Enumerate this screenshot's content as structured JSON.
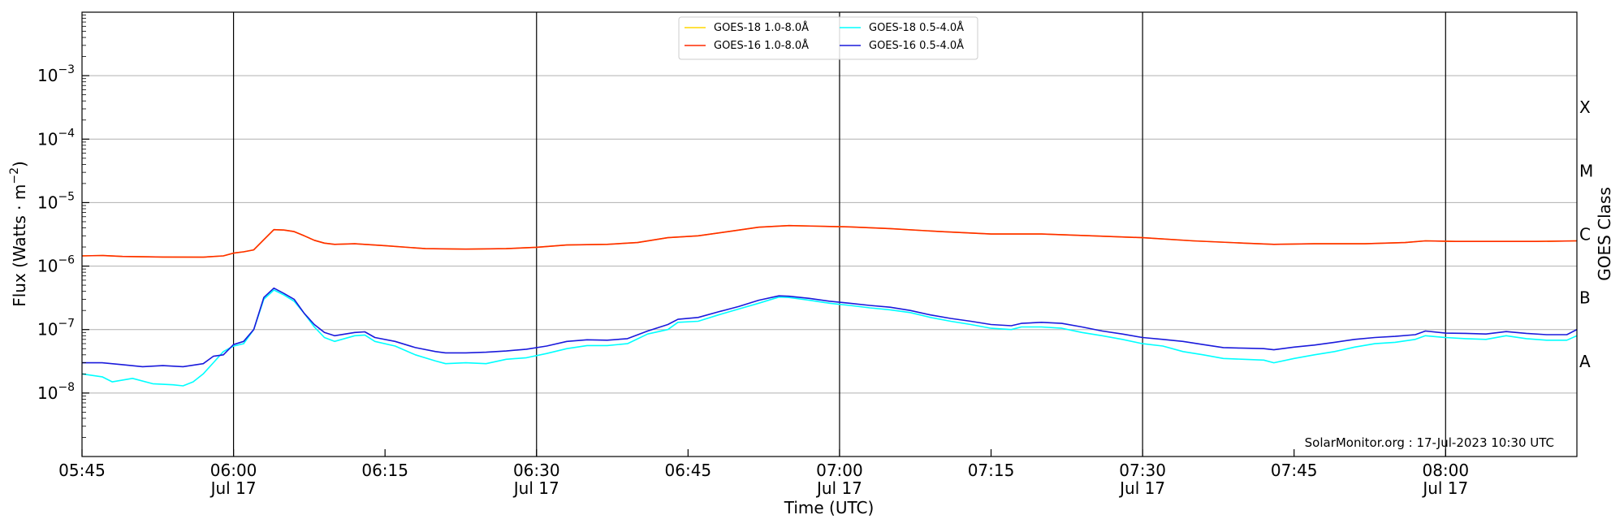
{
  "chart_data": {
    "type": "line",
    "title": "",
    "xlabel": "Time (UTC)",
    "ylabel_parts": {
      "main": "Flux (Watts · m",
      "exp": "−2",
      "close": ")"
    },
    "right_axis_label": "GOES Class",
    "credit": "SolarMonitor.org : 17-Jul-2023 10:30 UTC",
    "y_scale": "log",
    "ylim": [
      1e-09,
      0.01
    ],
    "x_range_minutes": [
      0,
      148
    ],
    "grid": "horizontal at decades, vertical at half-hour",
    "legend_position": "top-center",
    "x_ticks": [
      {
        "t": 0,
        "label": "05:45",
        "date": ""
      },
      {
        "t": 15,
        "label": "06:00",
        "date": "Jul 17"
      },
      {
        "t": 30,
        "label": "06:15",
        "date": ""
      },
      {
        "t": 45,
        "label": "06:30",
        "date": "Jul 17"
      },
      {
        "t": 60,
        "label": "06:45",
        "date": ""
      },
      {
        "t": 75,
        "label": "07:00",
        "date": "Jul 17"
      },
      {
        "t": 90,
        "label": "07:15",
        "date": ""
      },
      {
        "t": 105,
        "label": "07:30",
        "date": "Jul 17"
      },
      {
        "t": 120,
        "label": "07:45",
        "date": ""
      },
      {
        "t": 135,
        "label": "08:00",
        "date": "Jul 17"
      }
    ],
    "y_ticks": [
      {
        "exp": -8,
        "base": "10",
        "sup": "−8"
      },
      {
        "exp": -7,
        "base": "10",
        "sup": "−7"
      },
      {
        "exp": -6,
        "base": "10",
        "sup": "−6"
      },
      {
        "exp": -5,
        "base": "10",
        "sup": "−5"
      },
      {
        "exp": -4,
        "base": "10",
        "sup": "−4"
      },
      {
        "exp": -3,
        "base": "10",
        "sup": "−3"
      }
    ],
    "classes": [
      {
        "label": "A",
        "exp": -7.5
      },
      {
        "label": "B",
        "exp": -6.5
      },
      {
        "label": "C",
        "exp": -5.5
      },
      {
        "label": "M",
        "exp": -4.5
      },
      {
        "label": "X",
        "exp": -3.5
      }
    ],
    "legend": [
      {
        "name": "GOES-18 1.0-8.0Å",
        "color": "#ffd700"
      },
      {
        "name": "GOES-18 0.5-4.0Å",
        "color": "#00ffff"
      },
      {
        "name": "GOES-16 1.0-8.0Å",
        "color": "#ff2a00"
      },
      {
        "name": "GOES-16 0.5-4.0Å",
        "color": "#1a1adc"
      }
    ],
    "time_unit": "minutes after 05:45 UTC",
    "series": [
      {
        "name": "GOES-18 1.0-8.0Å",
        "color": "#ffd700",
        "points": [
          [
            0,
            1.45e-06
          ],
          [
            2,
            1.47e-06
          ],
          [
            4,
            1.42e-06
          ],
          [
            8,
            1.39e-06
          ],
          [
            12,
            1.38e-06
          ],
          [
            14,
            1.45e-06
          ],
          [
            15,
            1.6e-06
          ],
          [
            16,
            1.68e-06
          ],
          [
            17,
            1.8e-06
          ],
          [
            18,
            2.6e-06
          ],
          [
            19,
            3.75e-06
          ],
          [
            20,
            3.7e-06
          ],
          [
            21,
            3.5e-06
          ],
          [
            22,
            3e-06
          ],
          [
            23,
            2.55e-06
          ],
          [
            24,
            2.3e-06
          ],
          [
            25,
            2.2e-06
          ],
          [
            27,
            2.25e-06
          ],
          [
            30,
            2.1e-06
          ],
          [
            34,
            1.88e-06
          ],
          [
            38,
            1.85e-06
          ],
          [
            42,
            1.88e-06
          ],
          [
            45,
            1.98e-06
          ],
          [
            48,
            2.15e-06
          ],
          [
            52,
            2.2e-06
          ],
          [
            55,
            2.35e-06
          ],
          [
            58,
            2.8e-06
          ],
          [
            61,
            3e-06
          ],
          [
            64,
            3.5e-06
          ],
          [
            67,
            4.1e-06
          ],
          [
            70,
            4.35e-06
          ],
          [
            73,
            4.25e-06
          ],
          [
            76,
            4.15e-06
          ],
          [
            80,
            3.9e-06
          ],
          [
            85,
            3.5e-06
          ],
          [
            90,
            3.2e-06
          ],
          [
            95,
            3.2e-06
          ],
          [
            100,
            3e-06
          ],
          [
            105,
            2.8e-06
          ],
          [
            110,
            2.5e-06
          ],
          [
            115,
            2.3e-06
          ],
          [
            118,
            2.2e-06
          ],
          [
            122,
            2.25e-06
          ],
          [
            127,
            2.25e-06
          ],
          [
            131,
            2.35e-06
          ],
          [
            133,
            2.5e-06
          ],
          [
            136,
            2.45e-06
          ],
          [
            140,
            2.45e-06
          ],
          [
            144,
            2.45e-06
          ],
          [
            148,
            2.5e-06
          ]
        ]
      },
      {
        "name": "GOES-16 1.0-8.0Å",
        "color": "#ff2a00",
        "points": [
          [
            0,
            1.45e-06
          ],
          [
            2,
            1.47e-06
          ],
          [
            4,
            1.42e-06
          ],
          [
            8,
            1.39e-06
          ],
          [
            12,
            1.38e-06
          ],
          [
            14,
            1.45e-06
          ],
          [
            15,
            1.6e-06
          ],
          [
            16,
            1.68e-06
          ],
          [
            17,
            1.8e-06
          ],
          [
            18,
            2.6e-06
          ],
          [
            19,
            3.75e-06
          ],
          [
            20,
            3.7e-06
          ],
          [
            21,
            3.5e-06
          ],
          [
            22,
            3e-06
          ],
          [
            23,
            2.55e-06
          ],
          [
            24,
            2.3e-06
          ],
          [
            25,
            2.2e-06
          ],
          [
            27,
            2.25e-06
          ],
          [
            30,
            2.1e-06
          ],
          [
            34,
            1.88e-06
          ],
          [
            38,
            1.85e-06
          ],
          [
            42,
            1.88e-06
          ],
          [
            45,
            1.98e-06
          ],
          [
            48,
            2.15e-06
          ],
          [
            52,
            2.2e-06
          ],
          [
            55,
            2.35e-06
          ],
          [
            58,
            2.8e-06
          ],
          [
            61,
            3e-06
          ],
          [
            64,
            3.5e-06
          ],
          [
            67,
            4.1e-06
          ],
          [
            70,
            4.35e-06
          ],
          [
            73,
            4.25e-06
          ],
          [
            76,
            4.15e-06
          ],
          [
            80,
            3.9e-06
          ],
          [
            85,
            3.5e-06
          ],
          [
            90,
            3.2e-06
          ],
          [
            95,
            3.2e-06
          ],
          [
            100,
            3e-06
          ],
          [
            105,
            2.8e-06
          ],
          [
            110,
            2.5e-06
          ],
          [
            115,
            2.3e-06
          ],
          [
            118,
            2.2e-06
          ],
          [
            122,
            2.25e-06
          ],
          [
            127,
            2.25e-06
          ],
          [
            131,
            2.35e-06
          ],
          [
            133,
            2.5e-06
          ],
          [
            136,
            2.45e-06
          ],
          [
            140,
            2.45e-06
          ],
          [
            144,
            2.45e-06
          ],
          [
            148,
            2.5e-06
          ]
        ]
      },
      {
        "name": "GOES-18 0.5-4.0Å",
        "color": "#00ffff",
        "points": [
          [
            0,
            2e-08
          ],
          [
            2,
            1.8e-08
          ],
          [
            3,
            1.5e-08
          ],
          [
            5,
            1.7e-08
          ],
          [
            7,
            1.4e-08
          ],
          [
            9,
            1.35e-08
          ],
          [
            10,
            1.3e-08
          ],
          [
            11,
            1.5e-08
          ],
          [
            12,
            2e-08
          ],
          [
            13,
            3e-08
          ],
          [
            14,
            4.5e-08
          ],
          [
            15,
            5.5e-08
          ],
          [
            16,
            6e-08
          ],
          [
            17,
            1e-07
          ],
          [
            18,
            3e-07
          ],
          [
            19,
            4.2e-07
          ],
          [
            20,
            3.5e-07
          ],
          [
            21,
            2.8e-07
          ],
          [
            22,
            1.8e-07
          ],
          [
            23,
            1.1e-07
          ],
          [
            24,
            7.5e-08
          ],
          [
            25,
            6.5e-08
          ],
          [
            27,
            8e-08
          ],
          [
            28,
            8.2e-08
          ],
          [
            29,
            6.5e-08
          ],
          [
            31,
            5.5e-08
          ],
          [
            33,
            4e-08
          ],
          [
            35,
            3.2e-08
          ],
          [
            36,
            2.9e-08
          ],
          [
            38,
            3e-08
          ],
          [
            40,
            2.9e-08
          ],
          [
            42,
            3.4e-08
          ],
          [
            44,
            3.6e-08
          ],
          [
            46,
            4.2e-08
          ],
          [
            48,
            5e-08
          ],
          [
            50,
            5.6e-08
          ],
          [
            52,
            5.6e-08
          ],
          [
            54,
            6e-08
          ],
          [
            56,
            8.5e-08
          ],
          [
            58,
            1e-07
          ],
          [
            59,
            1.3e-07
          ],
          [
            61,
            1.35e-07
          ],
          [
            63,
            1.7e-07
          ],
          [
            65,
            2.1e-07
          ],
          [
            67,
            2.6e-07
          ],
          [
            69,
            3.25e-07
          ],
          [
            70,
            3.2e-07
          ],
          [
            72,
            2.9e-07
          ],
          [
            74,
            2.6e-07
          ],
          [
            76,
            2.4e-07
          ],
          [
            78,
            2.2e-07
          ],
          [
            80,
            2.05e-07
          ],
          [
            82,
            1.85e-07
          ],
          [
            84,
            1.55e-07
          ],
          [
            86,
            1.35e-07
          ],
          [
            88,
            1.2e-07
          ],
          [
            90,
            1.05e-07
          ],
          [
            92,
            1e-07
          ],
          [
            93,
            1.1e-07
          ],
          [
            95,
            1.1e-07
          ],
          [
            97,
            1.05e-07
          ],
          [
            99,
            9e-08
          ],
          [
            101,
            8e-08
          ],
          [
            103,
            7e-08
          ],
          [
            105,
            6e-08
          ],
          [
            107,
            5.5e-08
          ],
          [
            109,
            4.5e-08
          ],
          [
            111,
            4e-08
          ],
          [
            113,
            3.5e-08
          ],
          [
            115,
            3.4e-08
          ],
          [
            117,
            3.3e-08
          ],
          [
            118,
            3e-08
          ],
          [
            120,
            3.5e-08
          ],
          [
            122,
            4e-08
          ],
          [
            124,
            4.5e-08
          ],
          [
            126,
            5.3e-08
          ],
          [
            128,
            6e-08
          ],
          [
            130,
            6.3e-08
          ],
          [
            132,
            7e-08
          ],
          [
            133,
            8e-08
          ],
          [
            135,
            7.5e-08
          ],
          [
            137,
            7.2e-08
          ],
          [
            139,
            7e-08
          ],
          [
            141,
            8e-08
          ],
          [
            143,
            7.2e-08
          ],
          [
            145,
            6.8e-08
          ],
          [
            147,
            6.8e-08
          ],
          [
            148,
            8e-08
          ]
        ]
      },
      {
        "name": "GOES-16 0.5-4.0Å",
        "color": "#1a1adc",
        "points": [
          [
            0,
            3e-08
          ],
          [
            2,
            3e-08
          ],
          [
            4,
            2.8e-08
          ],
          [
            6,
            2.6e-08
          ],
          [
            8,
            2.7e-08
          ],
          [
            10,
            2.6e-08
          ],
          [
            12,
            2.9e-08
          ],
          [
            13,
            3.8e-08
          ],
          [
            14,
            4e-08
          ],
          [
            15,
            5.8e-08
          ],
          [
            16,
            6.5e-08
          ],
          [
            17,
            1e-07
          ],
          [
            18,
            3.2e-07
          ],
          [
            19,
            4.5e-07
          ],
          [
            20,
            3.7e-07
          ],
          [
            21,
            3e-07
          ],
          [
            22,
            1.8e-07
          ],
          [
            23,
            1.2e-07
          ],
          [
            24,
            9e-08
          ],
          [
            25,
            8e-08
          ],
          [
            27,
            9e-08
          ],
          [
            28,
            9.2e-08
          ],
          [
            29,
            7.5e-08
          ],
          [
            31,
            6.5e-08
          ],
          [
            33,
            5.2e-08
          ],
          [
            35,
            4.5e-08
          ],
          [
            36,
            4.3e-08
          ],
          [
            38,
            4.3e-08
          ],
          [
            40,
            4.4e-08
          ],
          [
            42,
            4.6e-08
          ],
          [
            44,
            4.9e-08
          ],
          [
            46,
            5.5e-08
          ],
          [
            48,
            6.5e-08
          ],
          [
            50,
            6.9e-08
          ],
          [
            52,
            6.8e-08
          ],
          [
            54,
            7.2e-08
          ],
          [
            56,
            9.5e-08
          ],
          [
            58,
            1.2e-07
          ],
          [
            59,
            1.45e-07
          ],
          [
            61,
            1.55e-07
          ],
          [
            63,
            1.9e-07
          ],
          [
            65,
            2.3e-07
          ],
          [
            67,
            2.9e-07
          ],
          [
            69,
            3.4e-07
          ],
          [
            70,
            3.35e-07
          ],
          [
            72,
            3.1e-07
          ],
          [
            74,
            2.8e-07
          ],
          [
            76,
            2.6e-07
          ],
          [
            78,
            2.4e-07
          ],
          [
            80,
            2.25e-07
          ],
          [
            82,
            2e-07
          ],
          [
            84,
            1.7e-07
          ],
          [
            86,
            1.5e-07
          ],
          [
            88,
            1.35e-07
          ],
          [
            90,
            1.2e-07
          ],
          [
            92,
            1.15e-07
          ],
          [
            93,
            1.25e-07
          ],
          [
            95,
            1.3e-07
          ],
          [
            97,
            1.25e-07
          ],
          [
            99,
            1.1e-07
          ],
          [
            101,
            9.5e-08
          ],
          [
            103,
            8.5e-08
          ],
          [
            105,
            7.5e-08
          ],
          [
            107,
            7e-08
          ],
          [
            109,
            6.5e-08
          ],
          [
            111,
            5.8e-08
          ],
          [
            113,
            5.2e-08
          ],
          [
            115,
            5.1e-08
          ],
          [
            117,
            5e-08
          ],
          [
            118,
            4.8e-08
          ],
          [
            120,
            5.3e-08
          ],
          [
            122,
            5.7e-08
          ],
          [
            124,
            6.3e-08
          ],
          [
            126,
            7e-08
          ],
          [
            128,
            7.5e-08
          ],
          [
            130,
            7.8e-08
          ],
          [
            132,
            8.3e-08
          ],
          [
            133,
            9.5e-08
          ],
          [
            135,
            8.8e-08
          ],
          [
            137,
            8.7e-08
          ],
          [
            139,
            8.5e-08
          ],
          [
            141,
            9.3e-08
          ],
          [
            143,
            8.7e-08
          ],
          [
            145,
            8.3e-08
          ],
          [
            147,
            8.3e-08
          ],
          [
            148,
            1e-07
          ]
        ]
      }
    ]
  }
}
